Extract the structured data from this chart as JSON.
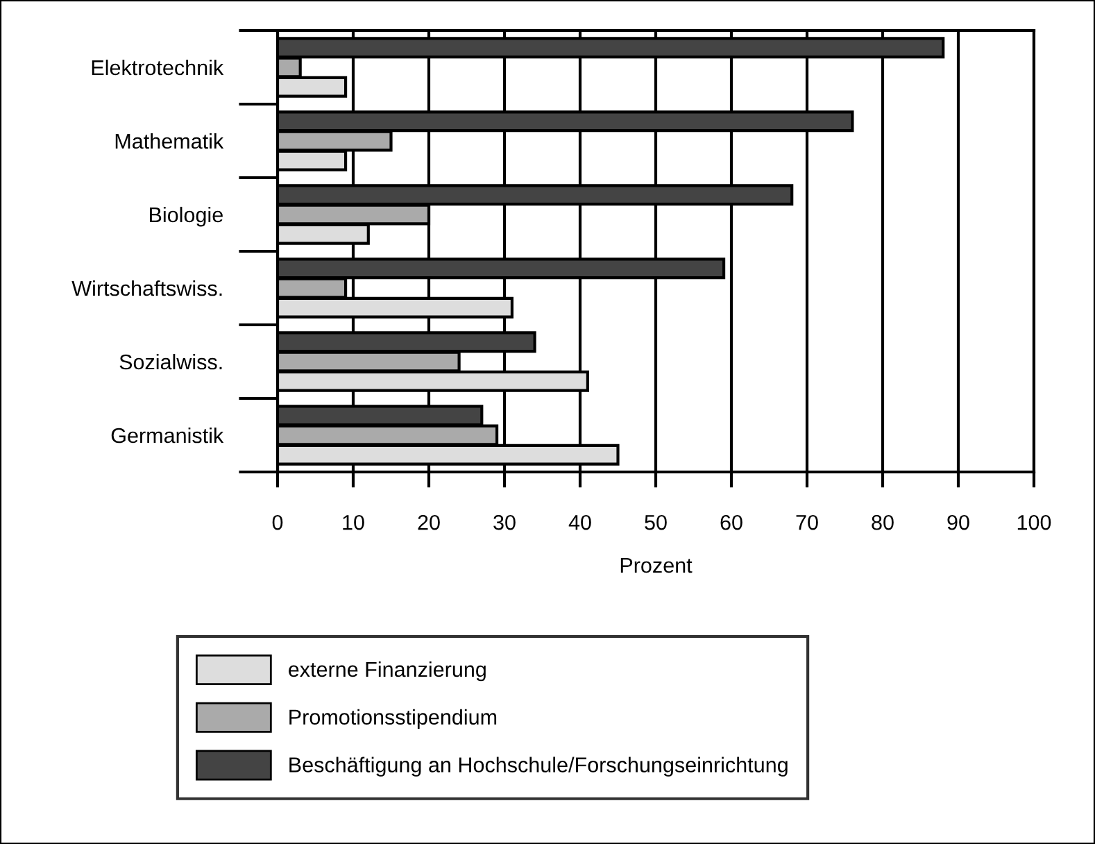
{
  "chart_data": {
    "type": "bar",
    "orientation": "horizontal",
    "xlabel": "Prozent",
    "categories": [
      "Elektrotechnik",
      "Mathematik",
      "Biologie",
      "Wirtschaftswiss.",
      "Sozialwiss.",
      "Germanistik"
    ],
    "series": [
      {
        "name": "externe Finanzierung",
        "color": "#dddddd",
        "values": [
          9,
          9,
          12,
          31,
          41,
          45
        ]
      },
      {
        "name": "Promotionsstipendium",
        "color": "#aaaaaa",
        "values": [
          3,
          15,
          20,
          9,
          24,
          29
        ]
      },
      {
        "name": "Beschäftigung an Hochschule/Forschungseinrichtung",
        "color": "#444444",
        "values": [
          88,
          76,
          68,
          59,
          34,
          27
        ]
      }
    ],
    "xlim": [
      0,
      100
    ],
    "xticks": [
      0,
      10,
      20,
      30,
      40,
      50,
      60,
      70,
      80,
      90,
      100
    ],
    "grid": "x",
    "legend": "bottom"
  }
}
